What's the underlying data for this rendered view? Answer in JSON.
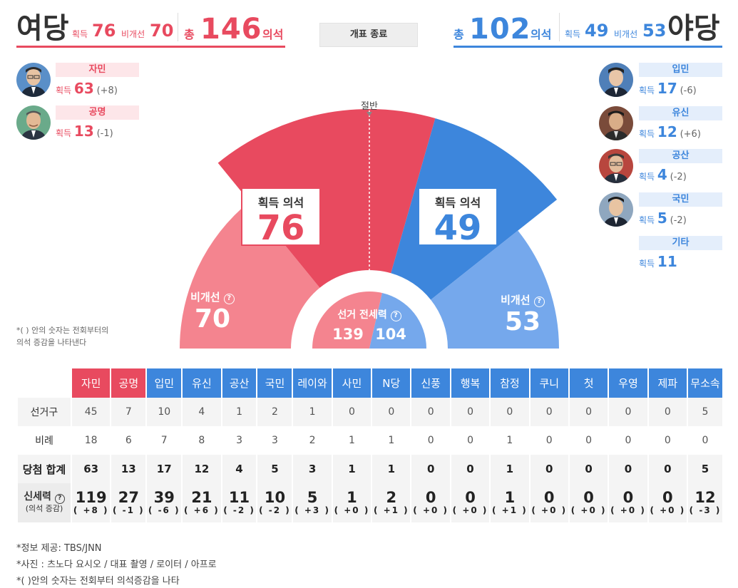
{
  "colors": {
    "ruling": "#e84a5f",
    "ruling_light": "#f4848f",
    "opposition": "#3d86dc",
    "opposition_light": "#75a8ec"
  },
  "header": {
    "ruling": {
      "name": "여당",
      "won_label": "획득",
      "won": "76",
      "nonelect_label": "비개선",
      "nonelect": "70",
      "total_label": "총",
      "total": "146",
      "seats_label": "의석"
    },
    "status": "개표 종료",
    "opposition": {
      "name": "야당",
      "won_label": "획득",
      "won": "49",
      "nonelect_label": "비개선",
      "nonelect": "53",
      "total_label": "총",
      "total": "102",
      "seats_label": "의석"
    }
  },
  "ruling_parties": [
    {
      "name": "자민",
      "won_label": "획득",
      "won": "63",
      "change": "(+8)",
      "avatar": "kishida-portrait"
    },
    {
      "name": "공명",
      "won_label": "획득",
      "won": "13",
      "change": "(-1)",
      "avatar": "yamaguchi-portrait"
    }
  ],
  "opposition_parties": [
    {
      "name": "입민",
      "won_label": "획득",
      "won": "17",
      "change": "(-6)",
      "avatar": "izumi-portrait"
    },
    {
      "name": "유신",
      "won_label": "획득",
      "won": "12",
      "change": "(+6)",
      "avatar": "matsui-portrait"
    },
    {
      "name": "공산",
      "won_label": "획득",
      "won": "4",
      "change": "(-2)",
      "avatar": "shii-portrait"
    },
    {
      "name": "국민",
      "won_label": "획득",
      "won": "5",
      "change": "(-2)",
      "avatar": "tamaki-portrait"
    },
    {
      "name": "기타",
      "won_label": "획득",
      "won": "11",
      "change": ""
    }
  ],
  "note_left": [
    "*( ) 안의 숫자는 전회부터의",
    "의석 증감을 나타낸다"
  ],
  "chart_data": {
    "type": "pie",
    "subtype": "half-donut",
    "total_seats": 248,
    "midline_label": "절반",
    "slices": [
      {
        "name": "여당 비개선",
        "value": 70,
        "label": "비개선",
        "color": "#f4848f"
      },
      {
        "name": "여당 획득",
        "value": 76,
        "label": "획득 의석",
        "color": "#e84a5f"
      },
      {
        "name": "야당 획득",
        "value": 49,
        "label": "획득 의석",
        "color": "#3d86dc"
      },
      {
        "name": "야당 비개선",
        "value": 53,
        "label": "비개선",
        "color": "#75a8ec"
      }
    ],
    "inner": {
      "label": "선거 전세력",
      "ruling": 139,
      "opposition": 104
    },
    "box_title": "획득 의석",
    "nonelect_label": "비개선",
    "info_icon": "question-circle-icon"
  },
  "table": {
    "parties": [
      {
        "name": "자민",
        "color": "#e84a5f"
      },
      {
        "name": "공명",
        "color": "#e84a5f"
      },
      {
        "name": "입민",
        "color": "#3d86dc"
      },
      {
        "name": "유신",
        "color": "#3d86dc"
      },
      {
        "name": "공산",
        "color": "#3d86dc"
      },
      {
        "name": "국민",
        "color": "#3d86dc"
      },
      {
        "name": "레이와",
        "color": "#3d86dc"
      },
      {
        "name": "사민",
        "color": "#3d86dc"
      },
      {
        "name": "N당",
        "color": "#3d86dc"
      },
      {
        "name": "신풍",
        "color": "#3d86dc"
      },
      {
        "name": "행복",
        "color": "#3d86dc"
      },
      {
        "name": "참정",
        "color": "#3d86dc"
      },
      {
        "name": "쿠니",
        "color": "#3d86dc"
      },
      {
        "name": "첫",
        "color": "#3d86dc"
      },
      {
        "name": "우영",
        "color": "#3d86dc"
      },
      {
        "name": "제파",
        "color": "#3d86dc"
      },
      {
        "name": "무소속",
        "color": "#3d86dc"
      }
    ],
    "rows": [
      {
        "label": "선거구",
        "values": [
          "45",
          "7",
          "10",
          "4",
          "1",
          "2",
          "1",
          "0",
          "0",
          "0",
          "0",
          "0",
          "0",
          "0",
          "0",
          "0",
          "5"
        ]
      },
      {
        "label": "비례",
        "values": [
          "18",
          "6",
          "7",
          "8",
          "3",
          "3",
          "2",
          "1",
          "1",
          "0",
          "0",
          "1",
          "0",
          "0",
          "0",
          "0",
          "0"
        ]
      },
      {
        "label": "당첨 합계",
        "values": [
          "63",
          "13",
          "17",
          "12",
          "4",
          "5",
          "3",
          "1",
          "1",
          "0",
          "0",
          "1",
          "0",
          "0",
          "0",
          "0",
          "5"
        ]
      }
    ],
    "new_strength": {
      "label": "신세력",
      "sublabel": "(의석 증감)",
      "values": [
        "119",
        "27",
        "39",
        "21",
        "11",
        "10",
        "5",
        "1",
        "2",
        "0",
        "0",
        "1",
        "0",
        "0",
        "0",
        "0",
        "12"
      ],
      "changes": [
        "( +8 )",
        "( -1 )",
        "( -6 )",
        "( +6 )",
        "( -2 )",
        "( -2 )",
        "( +3 )",
        "( +0 )",
        "( +1 )",
        "( +0 )",
        "( +0 )",
        "( +1 )",
        "( +0 )",
        "( +0 )",
        "( +0 )",
        "( +0 )",
        "( -3 )"
      ]
    }
  },
  "footer": [
    "*정보 제공: TBS/JNN",
    "*사진 : 츠노다 요시오 / 대표 촬영 / 로이터 / 아프로",
    "*( )안의 숫자는 전회부터 의석증감을 나타"
  ]
}
